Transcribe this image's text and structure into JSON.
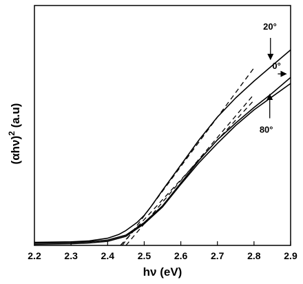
{
  "chart_data": {
    "type": "line",
    "title": "",
    "xlabel": "hν (eV)",
    "ylabel_main": "(αhν)",
    "ylabel_sup": "2",
    "ylabel_tail": " (a.u)",
    "xlim": [
      2.2,
      2.9
    ],
    "ylim": [
      0,
      100
    ],
    "x_ticks": [
      "2.2",
      "2.3",
      "2.4",
      "2.5",
      "2.6",
      "2.7",
      "2.8",
      "2.9"
    ],
    "y_ticks_shown": false,
    "grid": false,
    "series": [
      {
        "name": "20°",
        "x": [
          2.2,
          2.3,
          2.35,
          2.4,
          2.43,
          2.45,
          2.48,
          2.5,
          2.52,
          2.55,
          2.6,
          2.65,
          2.7,
          2.75,
          2.8,
          2.85,
          2.9
        ],
        "y": [
          1.3,
          1.5,
          1.9,
          3.0,
          4.5,
          6.2,
          9.5,
          12.5,
          16.5,
          23.0,
          33.5,
          44.0,
          53.5,
          61.5,
          68.5,
          75.0,
          81.5
        ]
      },
      {
        "name": "0°",
        "x": [
          2.2,
          2.3,
          2.35,
          2.4,
          2.45,
          2.5,
          2.55,
          2.6,
          2.65,
          2.7,
          2.75,
          2.8,
          2.85,
          2.9
        ],
        "y": [
          1.0,
          1.2,
          1.5,
          2.2,
          4.3,
          9.5,
          16.5,
          26.0,
          35.5,
          44.0,
          51.0,
          57.5,
          63.5,
          70.0
        ]
      },
      {
        "name": "80°",
        "x": [
          2.2,
          2.3,
          2.35,
          2.4,
          2.45,
          2.5,
          2.55,
          2.6,
          2.65,
          2.7,
          2.75,
          2.8,
          2.85,
          2.9
        ],
        "y": [
          0.5,
          0.7,
          1.0,
          1.7,
          3.8,
          9.0,
          16.0,
          25.5,
          34.5,
          42.5,
          50.0,
          56.5,
          62.0,
          67.5
        ]
      }
    ],
    "fits": [
      {
        "x": [
          2.44,
          2.8
        ],
        "y": [
          0,
          74.0
        ]
      },
      {
        "x": [
          2.45,
          2.8
        ],
        "y": [
          0,
          63.0
        ]
      },
      {
        "x": [
          2.435,
          2.8
        ],
        "y": [
          0,
          60.5
        ]
      }
    ],
    "annotations": [
      {
        "text": "20°",
        "series": "20°",
        "text_x": 2.825,
        "text_y": 90.0,
        "arrow_from_y": 86.5,
        "arrow_to_y": 77.5,
        "arrow_x": 2.845,
        "direction": "down"
      },
      {
        "text": "0°",
        "series": "0°",
        "text_x": 2.85,
        "text_y": 73.5,
        "arrow_from_x": 2.865,
        "arrow_to_x": 2.888,
        "arrow_y": 71.5,
        "direction": "right"
      },
      {
        "text": "80°",
        "series": "80°",
        "text_x": 2.815,
        "text_y": 47.0,
        "arrow_from_y": 53.0,
        "arrow_to_y": 63.0,
        "arrow_x": 2.843,
        "direction": "up"
      }
    ]
  }
}
